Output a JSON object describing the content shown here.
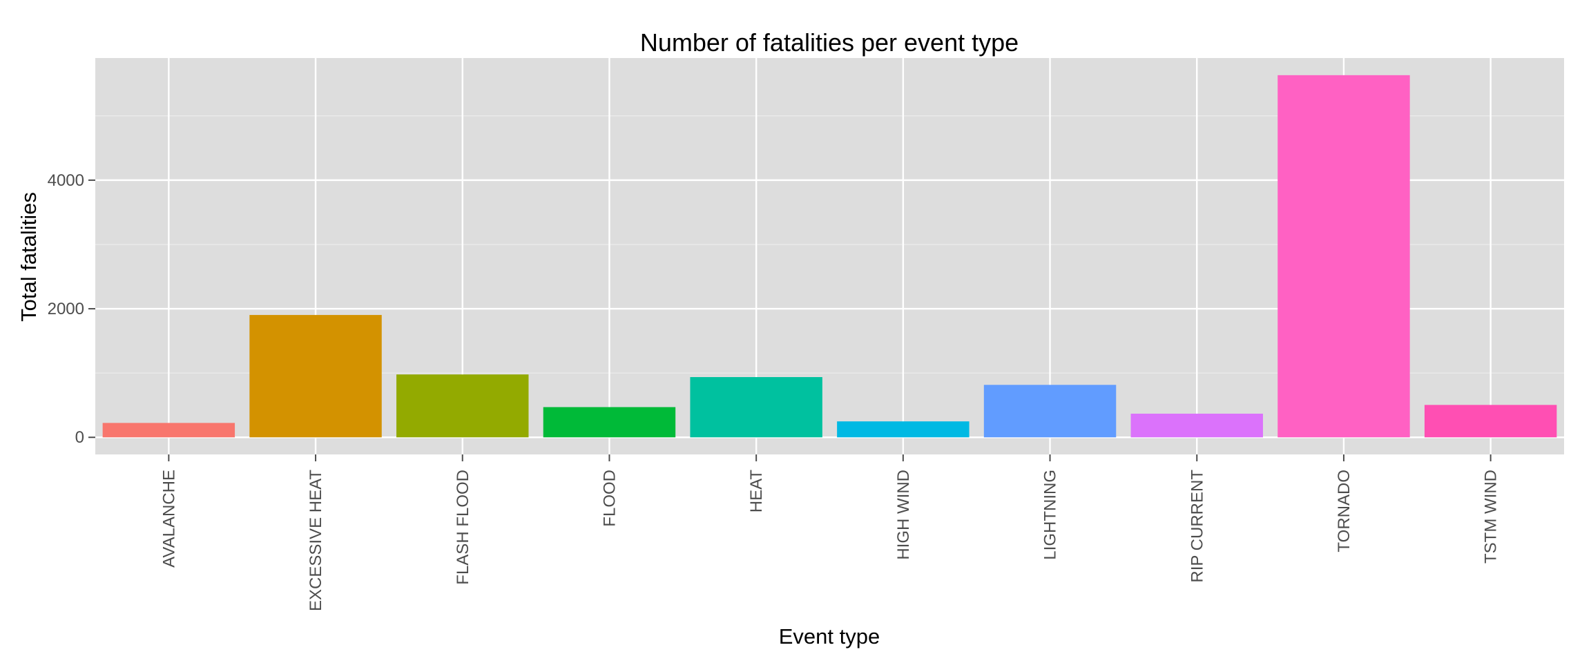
{
  "chart_data": {
    "type": "bar",
    "title": "Number of fatalities per event type",
    "xlabel": "Event type",
    "ylabel": "Total fatalities",
    "categories": [
      "AVALANCHE",
      "EXCESSIVE HEAT",
      "FLASH FLOOD",
      "FLOOD",
      "HEAT",
      "HIGH WIND",
      "LIGHTNING",
      "RIP CURRENT",
      "TORNADO",
      "TSTM WIND"
    ],
    "values": [
      224,
      1903,
      978,
      470,
      937,
      248,
      816,
      368,
      5633,
      504
    ],
    "colors": [
      "#F8766D",
      "#D39200",
      "#93AA00",
      "#00BA38",
      "#00C19F",
      "#00B9E3",
      "#619CFF",
      "#DB72FB",
      "#FF61C3",
      "#FF4FB3"
    ],
    "ylim": [
      -266,
      5900
    ],
    "yticks": [
      0,
      2000,
      4000
    ],
    "grid": true,
    "legend": "none",
    "panel_background": "#dddddd",
    "grid_color": "#ffffff"
  }
}
